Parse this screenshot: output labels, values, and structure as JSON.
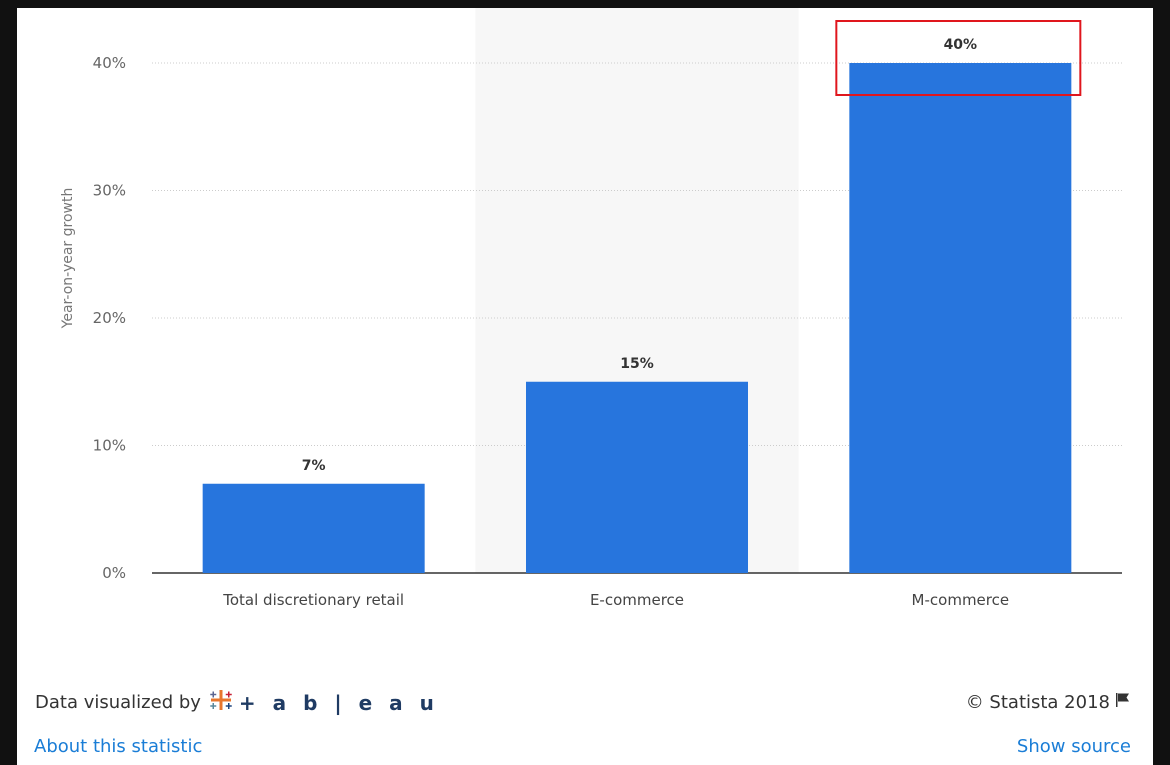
{
  "chart_data": {
    "type": "bar",
    "categories": [
      "Total discretionary retail",
      "E-commerce",
      "M-commerce"
    ],
    "values": [
      7,
      15,
      40
    ],
    "value_labels": [
      "7%",
      "15%",
      "40%"
    ],
    "xlabel": "",
    "ylabel": "Year-on-year growth",
    "ylim": [
      0,
      40
    ],
    "yticks": [
      0,
      10,
      20,
      30,
      40
    ],
    "ytick_labels": [
      "0%",
      "10%",
      "20%",
      "30%",
      "40%"
    ],
    "grid": true,
    "highlighted_category": "E-commerce",
    "annotation": "red box around M-commerce value label",
    "bar_color": "#2775dd",
    "highlight_band_color": "#f7f7f7",
    "annotation_color": "#e0161d"
  },
  "footer": {
    "credit_prefix": "Data visualized by",
    "credit_brand": "+ a b | e a u",
    "copyright": "© Statista 2018",
    "about_link": "About this statistic",
    "source_link": "Show source"
  },
  "icons": {
    "tableau_logo": "tableau-cross-logo-icon",
    "flag": "flag-icon"
  }
}
